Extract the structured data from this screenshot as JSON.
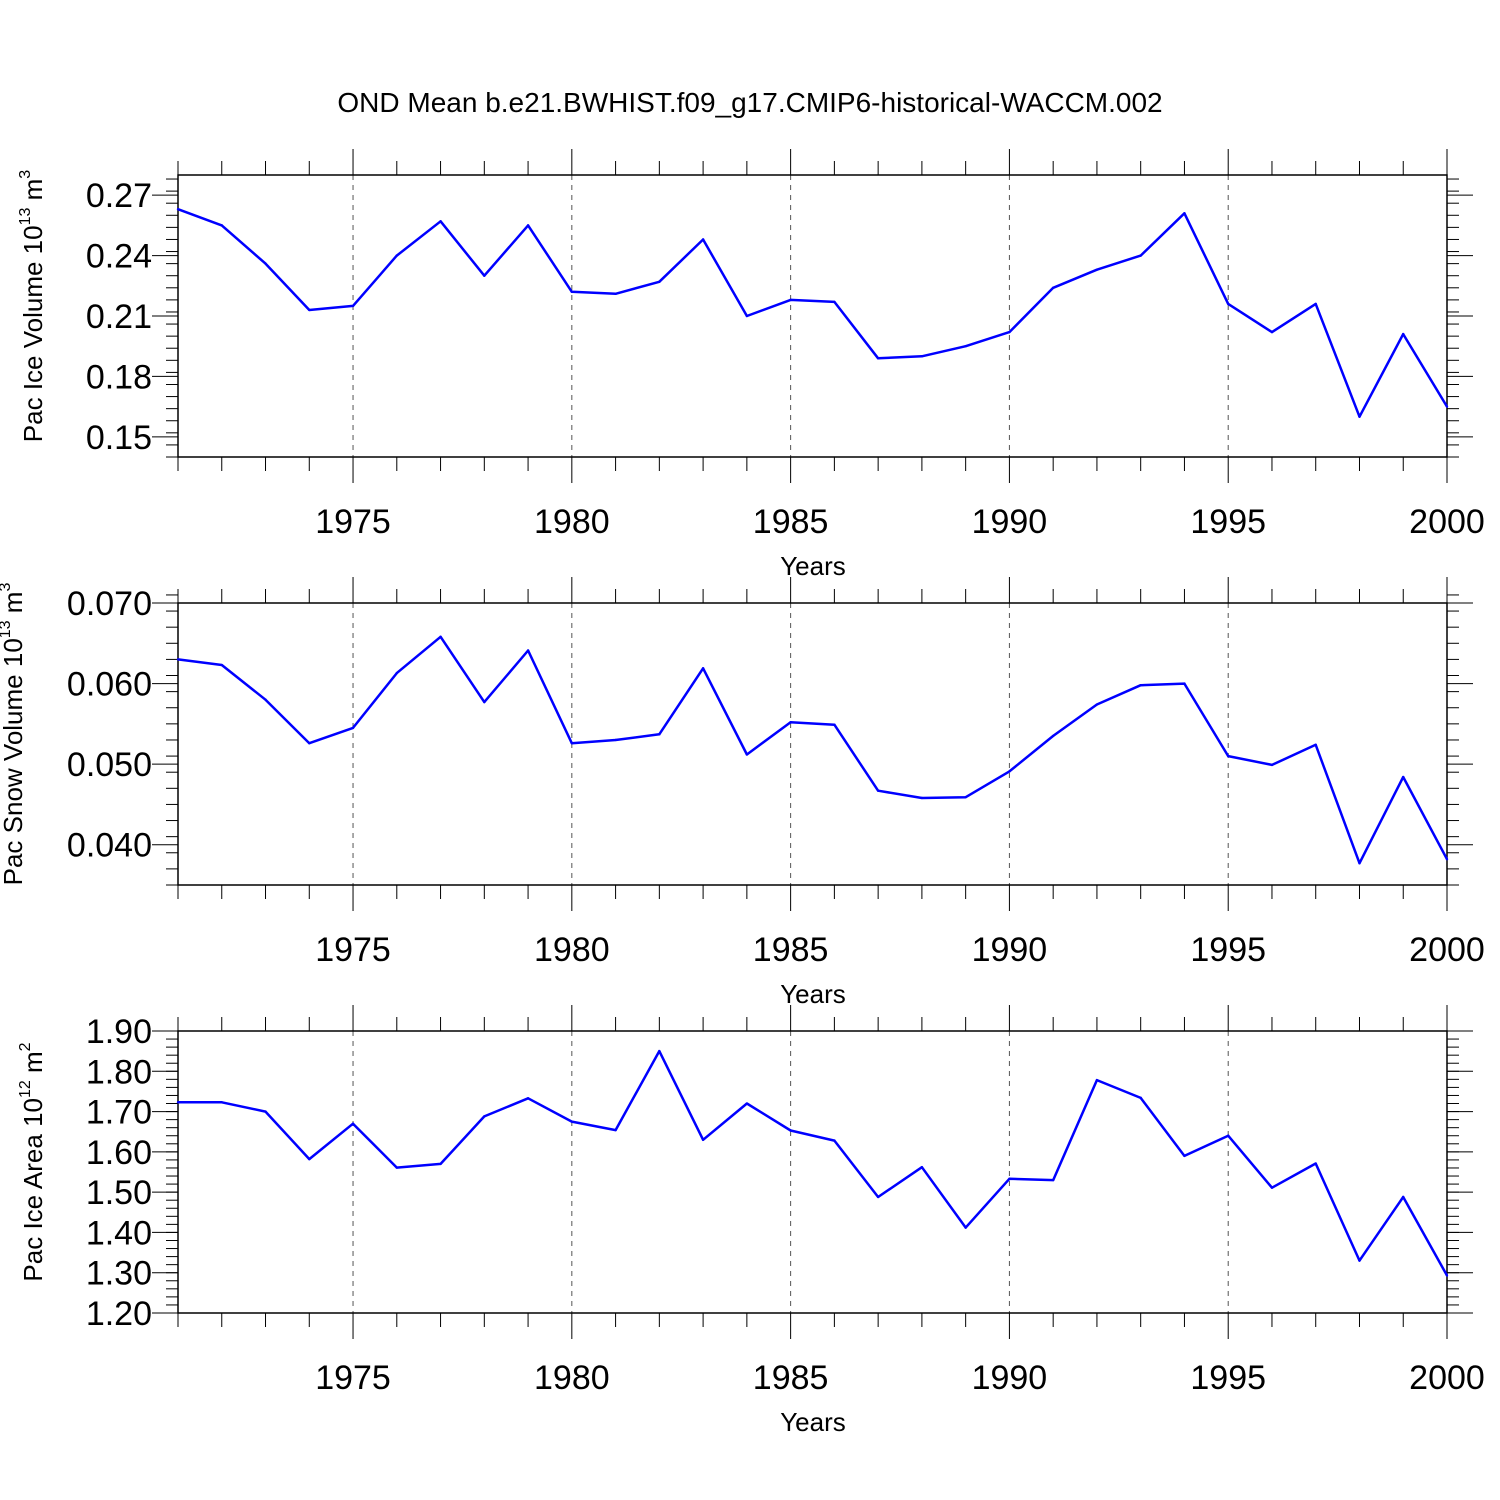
{
  "title": "OND Mean b.e21.BWHIST.f09_g17.CMIP6-historical-WACCM.002",
  "colors": {
    "line": "#0000ff",
    "axis": "#000000",
    "grid": "#555555"
  },
  "chart_data": [
    {
      "type": "line",
      "xlabel": "Years",
      "ylabel": {
        "text": "Pac Ice Volume 10",
        "exp": "13",
        "unit": " m",
        "unit_exp": "3"
      },
      "xlim": [
        1971,
        2000
      ],
      "ylim": [
        0.14,
        0.28
      ],
      "xticks": [
        "1975",
        "1980",
        "1985",
        "1990",
        "1995",
        "2000"
      ],
      "yticks": [
        "0.15",
        "0.18",
        "0.21",
        "0.24",
        "0.27"
      ],
      "grid": "vertical dashed at major x ticks",
      "x": [
        1971,
        1972,
        1973,
        1974,
        1975,
        1976,
        1977,
        1978,
        1979,
        1980,
        1981,
        1982,
        1983,
        1984,
        1985,
        1986,
        1987,
        1988,
        1989,
        1990,
        1991,
        1992,
        1993,
        1994,
        1995,
        1996,
        1997,
        1998,
        1999,
        2000
      ],
      "values": [
        0.263,
        0.255,
        0.236,
        0.213,
        0.215,
        0.24,
        0.257,
        0.23,
        0.255,
        0.222,
        0.221,
        0.227,
        0.248,
        0.21,
        0.218,
        0.217,
        0.189,
        0.19,
        0.195,
        0.202,
        0.224,
        0.233,
        0.24,
        0.261,
        0.216,
        0.202,
        0.216,
        0.16,
        0.201,
        0.165
      ]
    },
    {
      "type": "line",
      "xlabel": "Years",
      "ylabel": {
        "text": "Pac Snow Volume 10",
        "exp": "13",
        "unit": " m",
        "unit_exp": "3"
      },
      "xlim": [
        1971,
        2000
      ],
      "ylim": [
        0.035,
        0.07
      ],
      "xticks": [
        "1975",
        "1980",
        "1985",
        "1990",
        "1995",
        "2000"
      ],
      "yticks": [
        "0.040",
        "0.050",
        "0.060",
        "0.070"
      ],
      "grid": "vertical dashed at major x ticks",
      "x": [
        1971,
        1972,
        1973,
        1974,
        1975,
        1976,
        1977,
        1978,
        1979,
        1980,
        1981,
        1982,
        1983,
        1984,
        1985,
        1986,
        1987,
        1988,
        1989,
        1990,
        1991,
        1992,
        1993,
        1994,
        1995,
        1996,
        1997,
        1998,
        1999,
        2000
      ],
      "values": [
        0.063,
        0.0623,
        0.058,
        0.0526,
        0.0545,
        0.0613,
        0.0658,
        0.0577,
        0.0641,
        0.0526,
        0.053,
        0.0537,
        0.0619,
        0.0512,
        0.0552,
        0.0549,
        0.0467,
        0.0458,
        0.0459,
        0.0491,
        0.0535,
        0.0574,
        0.0598,
        0.06,
        0.051,
        0.0499,
        0.0524,
        0.0377,
        0.0484,
        0.0382
      ]
    },
    {
      "type": "line",
      "xlabel": "Years",
      "ylabel": {
        "text": "Pac Ice Area 10",
        "exp": "12",
        "unit": " m",
        "unit_exp": "2"
      },
      "xlim": [
        1971,
        2000
      ],
      "ylim": [
        1.2,
        1.9
      ],
      "xticks": [
        "1975",
        "1980",
        "1985",
        "1990",
        "1995",
        "2000"
      ],
      "yticks": [
        "1.20",
        "1.30",
        "1.40",
        "1.50",
        "1.60",
        "1.70",
        "1.80",
        "1.90"
      ],
      "grid": "vertical dashed at major x ticks",
      "x": [
        1971,
        1972,
        1973,
        1974,
        1975,
        1976,
        1977,
        1978,
        1979,
        1980,
        1981,
        1982,
        1983,
        1984,
        1985,
        1986,
        1987,
        1988,
        1989,
        1990,
        1991,
        1992,
        1993,
        1994,
        1995,
        1996,
        1997,
        1998,
        1999,
        2000
      ],
      "values": [
        1.723,
        1.723,
        1.7,
        1.582,
        1.67,
        1.561,
        1.57,
        1.688,
        1.733,
        1.675,
        1.654,
        1.85,
        1.63,
        1.72,
        1.653,
        1.628,
        1.488,
        1.562,
        1.412,
        1.533,
        1.53,
        1.778,
        1.734,
        1.59,
        1.64,
        1.511,
        1.571,
        1.33,
        1.488,
        1.293
      ]
    }
  ]
}
